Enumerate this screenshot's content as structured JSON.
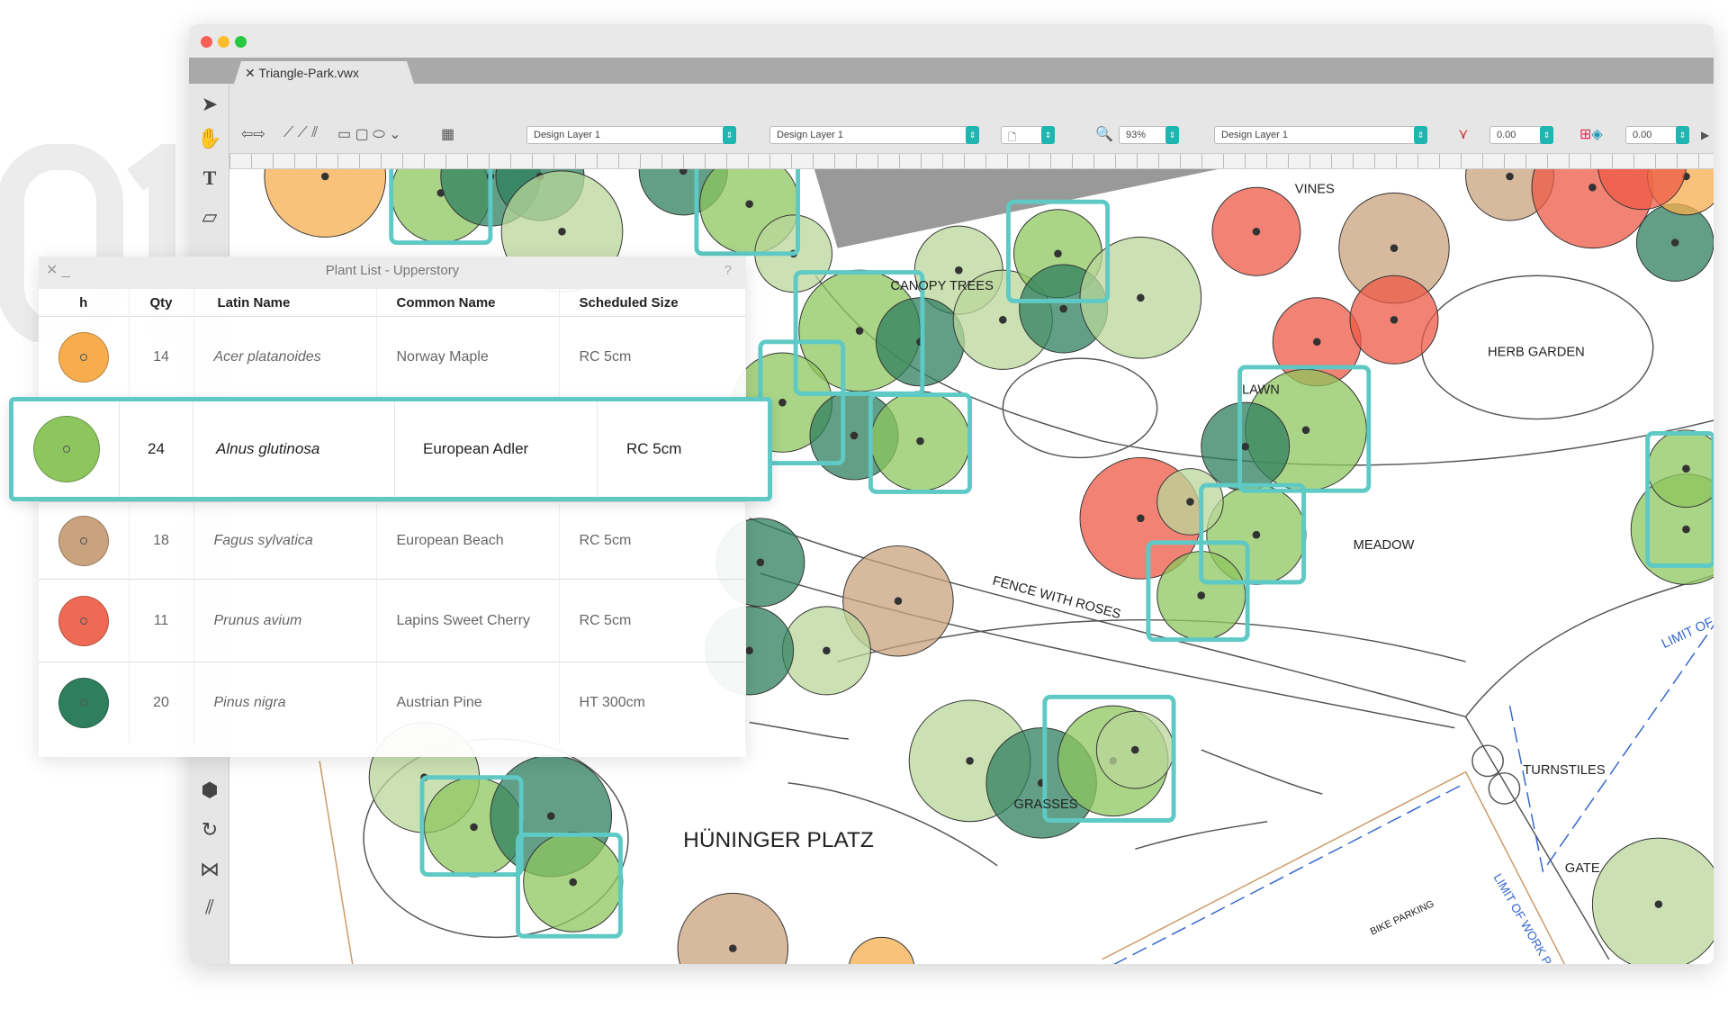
{
  "watermark": "01",
  "window": {
    "tab_label": "Triangle-Park.vwx"
  },
  "toolbar": {
    "layer1": "Design Layer 1",
    "layer2": "Design Layer 1",
    "zoom": "93%",
    "layer3": "Design Layer 1",
    "value1": "0.00",
    "value2": "0.00"
  },
  "panel": {
    "title": "Plant List - Upperstory",
    "headers": [
      "h",
      "Qty",
      "Latin Name",
      "Common Name",
      "Scheduled Size"
    ],
    "rows": [
      {
        "color": "#f7ad4e",
        "qty": "14",
        "latin": "Acer platanoides",
        "common": "Norway Maple",
        "size": "RC 5cm"
      },
      {
        "color": "#8ec65e",
        "qty": "24",
        "latin": "Alnus glutinosa",
        "common": "European Adler",
        "size": "RC 5cm",
        "selected": true
      },
      {
        "color": "#c9a27e",
        "qty": "18",
        "latin": "Fagus sylvatica",
        "common": "European Beach",
        "size": "RC 5cm"
      },
      {
        "color": "#ee6a55",
        "qty": "11",
        "latin": "Prunus avium",
        "common": "Lapins Sweet Cherry",
        "size": "RC 5cm"
      },
      {
        "color": "#2e7f5e",
        "qty": "20",
        "latin": "Pinus nigra",
        "common": "Austrian Pine",
        "size": "HT 300cm"
      }
    ]
  },
  "map_labels": {
    "vines": "VINES",
    "canopy": "CANOPY TREES",
    "herb": "HERB GARDEN",
    "lawn": "LAWN",
    "meadow": "MEADOW",
    "fence": "FENCE WITH ROSES",
    "limit": "LIMIT OF",
    "turnstiles": "TURNSTILES",
    "grasses": "GRASSES",
    "platz": "HÜNINGER PLATZ",
    "gate": "GATE",
    "bike": "BIKE PARKING",
    "limit_work": "LIMIT OF WORK P"
  },
  "colors": {
    "accent": "#5ec9c5",
    "toolbar_accent": "#1fb5b0"
  }
}
